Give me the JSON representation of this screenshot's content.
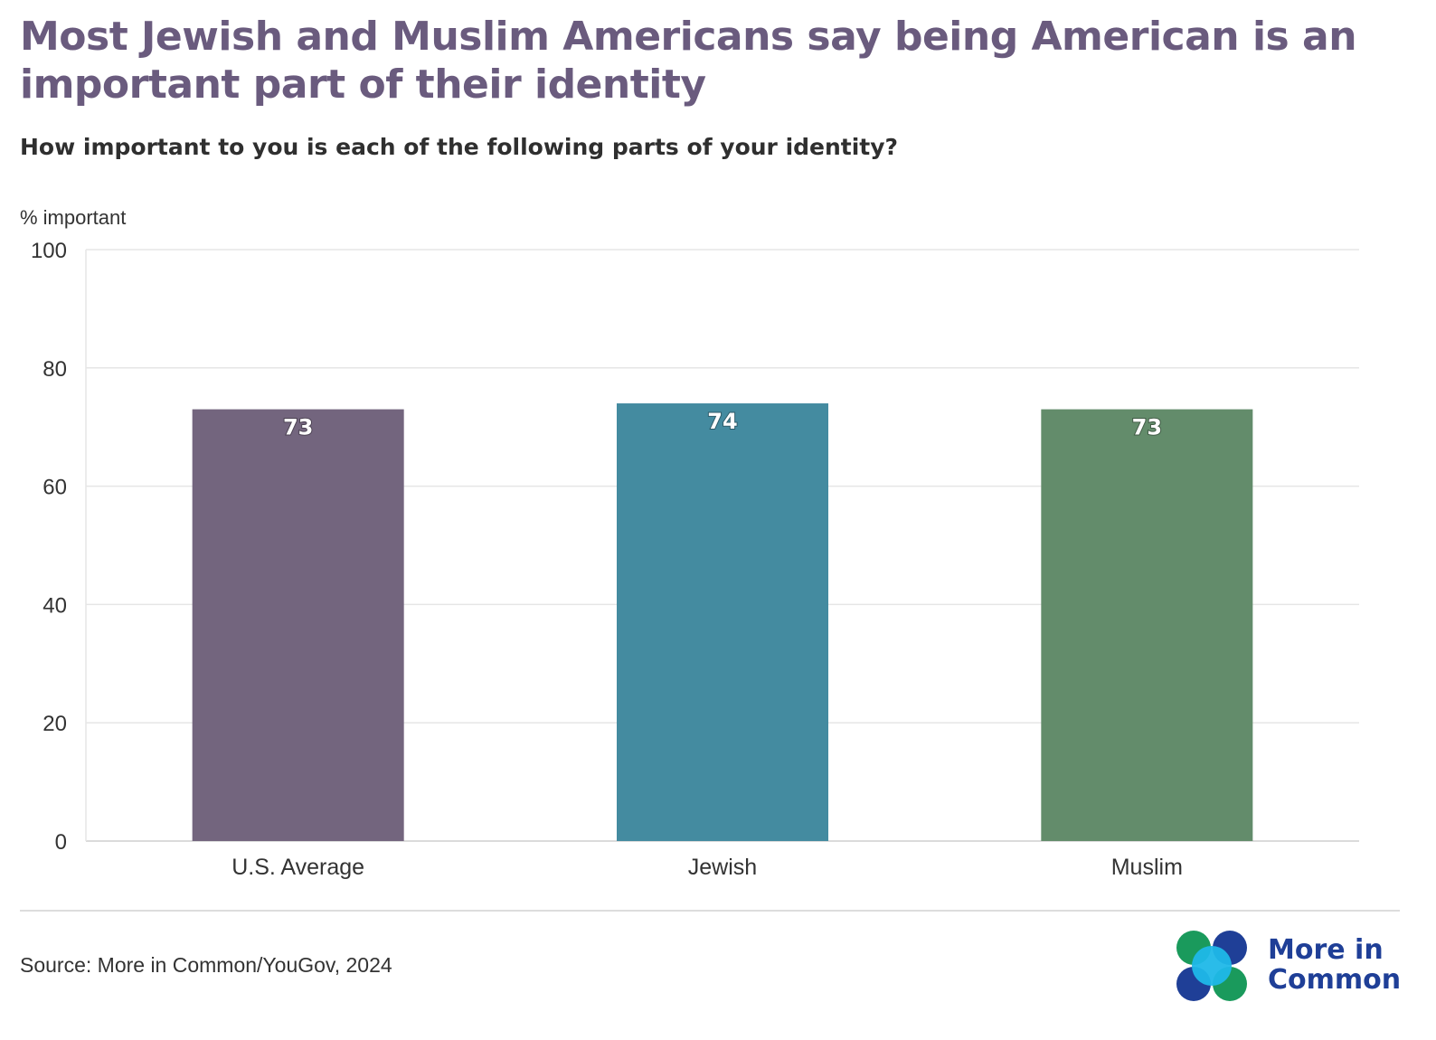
{
  "title": "Most Jewish and Muslim Americans say being American is an important part of their identity",
  "subtitle": "How important to you is each of the following parts of your identity?",
  "source": "Source: More in Common/YouGov, 2024",
  "logo": {
    "line1": "More in",
    "line2": "Common",
    "colors": [
      "#1a9a5c",
      "#1fb8e8",
      "#1f3f97"
    ]
  },
  "chart_data": {
    "type": "bar",
    "ylabel": "% important",
    "ylim": [
      0,
      100
    ],
    "yticks": [
      0,
      20,
      40,
      60,
      80,
      100
    ],
    "grid": true,
    "categories": [
      "U.S. Average",
      "Jewish",
      "Muslim"
    ],
    "values": [
      73,
      74,
      73
    ],
    "colors": [
      "#73657e",
      "#448ba0",
      "#638c6b"
    ],
    "data_labels": [
      "73",
      "74",
      "73"
    ]
  }
}
